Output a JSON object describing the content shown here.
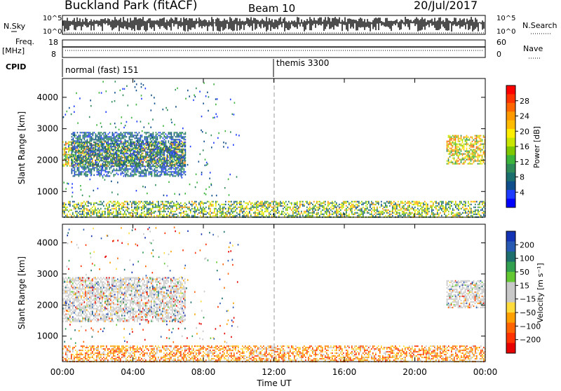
{
  "header": {
    "station": "Buckland Park (fitACF)",
    "beam": "Beam 10",
    "date": "20/Jul/2017"
  },
  "top_panels": {
    "nsky_label": "N.Sky",
    "nsearch_label": "N.Search",
    "nsky_tick_top": "10^5",
    "nsky_tick_bottom": "10^0",
    "freq_label_1": "Freq.",
    "freq_label_2": "[MHz]",
    "freq_ticks": [
      "18",
      "8"
    ],
    "nave_label": "Nave",
    "nave_ticks": [
      "60",
      "0"
    ],
    "cpid_label": "CPID",
    "cpid_segments": [
      "normal (fast) 151",
      "themis 3300"
    ]
  },
  "power_panel": {
    "ylabel": "Slant Range [km]",
    "cbar_label": "Power [dB]",
    "cbar_ticks": [
      "28",
      "24",
      "20",
      "16",
      "12",
      "8",
      "4"
    ],
    "cbar_colors": [
      "#ff0000",
      "#ff3300",
      "#ff6600",
      "#ff9900",
      "#ffbb00",
      "#ffee00",
      "#c8e600",
      "#7fc800",
      "#3cb43c",
      "#2e8b57",
      "#1a6e6e",
      "#104e8b",
      "#1e3cff",
      "#0000ff"
    ]
  },
  "velocity_panel": {
    "ylabel": "Slant Range [km]",
    "cbar_label": "Velocity [m s⁻¹]",
    "cbar_ticks": [
      "200",
      "100",
      "50",
      "15",
      "−15",
      "−50",
      "−100",
      "−200"
    ],
    "cbar_colors": [
      "#1432b4",
      "#285ab4",
      "#1e6e6e",
      "#32a050",
      "#64c832",
      "#c8c8c8",
      "#c8c8c8",
      "#ffdc3c",
      "#ffa000",
      "#ff6400",
      "#ff3200",
      "#e60000"
    ]
  },
  "xaxis": {
    "label": "Time UT",
    "ticks": [
      "00:00",
      "04:00",
      "08:00",
      "12:00",
      "16:00",
      "20:00",
      "00:00"
    ]
  },
  "chart_data": [
    {
      "type": "heatmap",
      "title": "Power",
      "xlabel": "Time UT",
      "ylabel": "Slant Range [km]",
      "xlim": [
        0,
        24
      ],
      "ylim": [
        180,
        4600
      ],
      "yticks": [
        1000,
        2000,
        3000,
        4000
      ],
      "colorbar": {
        "label": "Power [dB]",
        "range": [
          0,
          32
        ],
        "ticks": [
          4,
          8,
          12,
          16,
          20,
          24,
          28
        ]
      },
      "regions": [
        {
          "t_start": 0.0,
          "t_end": 7.0,
          "range_min": 1800,
          "range_max": 2600,
          "value": 18
        },
        {
          "t_start": 0.5,
          "t_end": 7.0,
          "range_min": 1500,
          "range_max": 2900,
          "value": 10
        },
        {
          "t_start": 0.0,
          "t_end": 24.0,
          "range_min": 180,
          "range_max": 700,
          "value": 14
        },
        {
          "t_start": 21.8,
          "t_end": 24.0,
          "range_min": 1900,
          "range_max": 2800,
          "value": 16
        }
      ],
      "marker_time": 12.0
    },
    {
      "type": "heatmap",
      "title": "Velocity",
      "xlabel": "Time UT",
      "ylabel": "Slant Range [km]",
      "xlim": [
        0,
        24
      ],
      "ylim": [
        180,
        4600
      ],
      "yticks": [
        1000,
        2000,
        3000,
        4000
      ],
      "colorbar": {
        "label": "Velocity [m s⁻¹]",
        "ticks": [
          200,
          100,
          50,
          15,
          -15,
          -50,
          -100,
          -200
        ]
      },
      "regions": [
        {
          "t_start": 0.0,
          "t_end": 7.0,
          "range_min": 1500,
          "range_max": 2900,
          "value": 0
        },
        {
          "t_start": 0.0,
          "t_end": 24.0,
          "range_min": 180,
          "range_max": 700,
          "value": -40
        },
        {
          "t_start": 21.8,
          "t_end": 24.0,
          "range_min": 1900,
          "range_max": 2800,
          "value": 0
        }
      ],
      "marker_time": 12.0
    }
  ]
}
